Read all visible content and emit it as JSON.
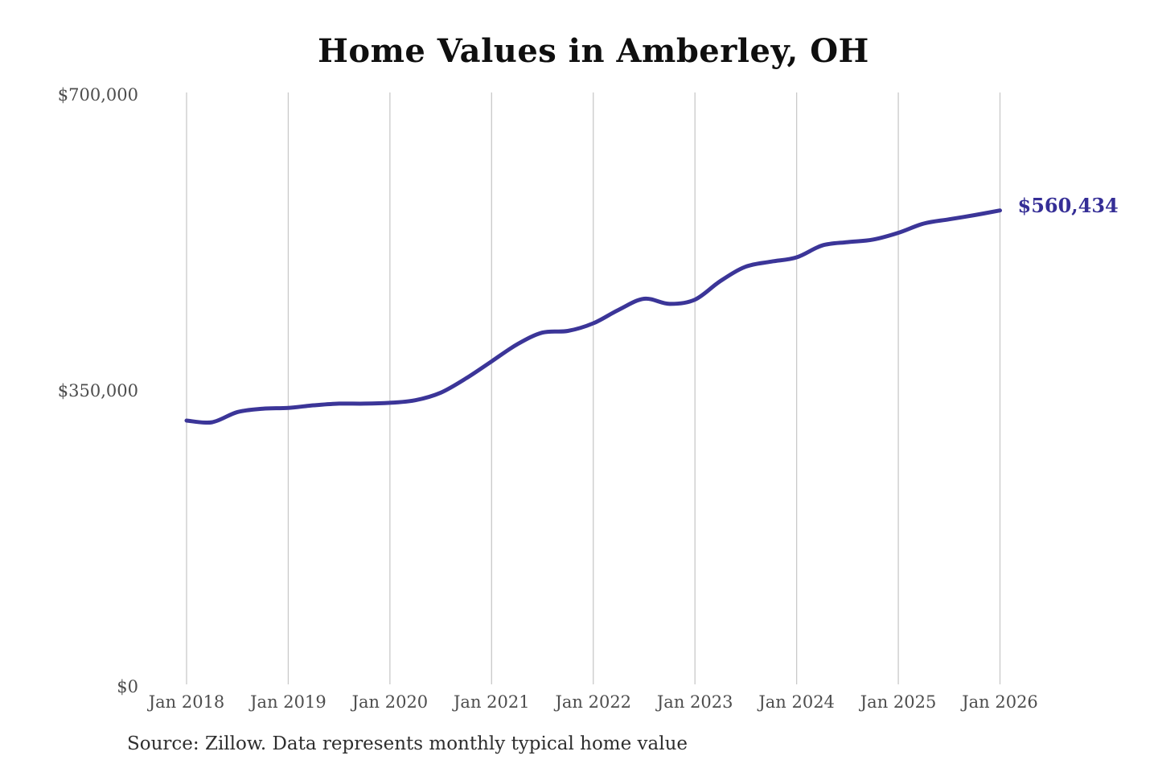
{
  "title": "Home Values in Amberley, OH",
  "source_note": "Source: Zillow. Data represents monthly typical home value",
  "end_label": "$560,434",
  "colors": {
    "line": "#3b3598",
    "end_label": "#352e96",
    "grid": "#c9c9c9",
    "axis_text": "#4d4d4d",
    "title_text": "#0f0f0f"
  },
  "chart_data": {
    "type": "line",
    "title": "Home Values in Amberley, OH",
    "xlabel": "",
    "ylabel": "",
    "ylim": [
      0,
      700000
    ],
    "y_tick_values": [
      0,
      350000,
      700000
    ],
    "y_tick_labels": [
      "$0",
      "$350,000",
      "$700,000"
    ],
    "x_tick_labels": [
      "Jan 2018",
      "Jan 2019",
      "Jan 2020",
      "Jan 2021",
      "Jan 2022",
      "Jan 2023",
      "Jan 2024",
      "Jan 2025",
      "Jan 2026"
    ],
    "grid": "vertical-only",
    "legend": "none",
    "end_value": 560434,
    "series": [
      {
        "name": "Monthly typical home value",
        "months": [
          "2018-01",
          "2018-04",
          "2018-07",
          "2018-10",
          "2019-01",
          "2019-04",
          "2019-07",
          "2019-10",
          "2020-01",
          "2020-04",
          "2020-07",
          "2020-10",
          "2021-01",
          "2021-04",
          "2021-07",
          "2021-10",
          "2022-01",
          "2022-04",
          "2022-07",
          "2022-10",
          "2023-01",
          "2023-04",
          "2023-07",
          "2023-10",
          "2024-01",
          "2024-04",
          "2024-07",
          "2024-10",
          "2025-01",
          "2025-04",
          "2025-07",
          "2025-10",
          "2026-01"
        ],
        "month_offsets": [
          0,
          3,
          6,
          9,
          12,
          15,
          18,
          21,
          24,
          27,
          30,
          33,
          36,
          39,
          42,
          45,
          48,
          51,
          54,
          57,
          60,
          63,
          66,
          69,
          72,
          75,
          78,
          81,
          84,
          87,
          90,
          93,
          96
        ],
        "values": [
          312000,
          310000,
          322000,
          326000,
          327000,
          330000,
          332000,
          332000,
          333000,
          336000,
          345000,
          362000,
          382000,
          402000,
          416000,
          418000,
          427000,
          443000,
          456000,
          450000,
          455000,
          477000,
          494000,
          500000,
          505000,
          519000,
          523000,
          526000,
          534000,
          545000,
          550000,
          555000,
          560434
        ]
      }
    ]
  }
}
